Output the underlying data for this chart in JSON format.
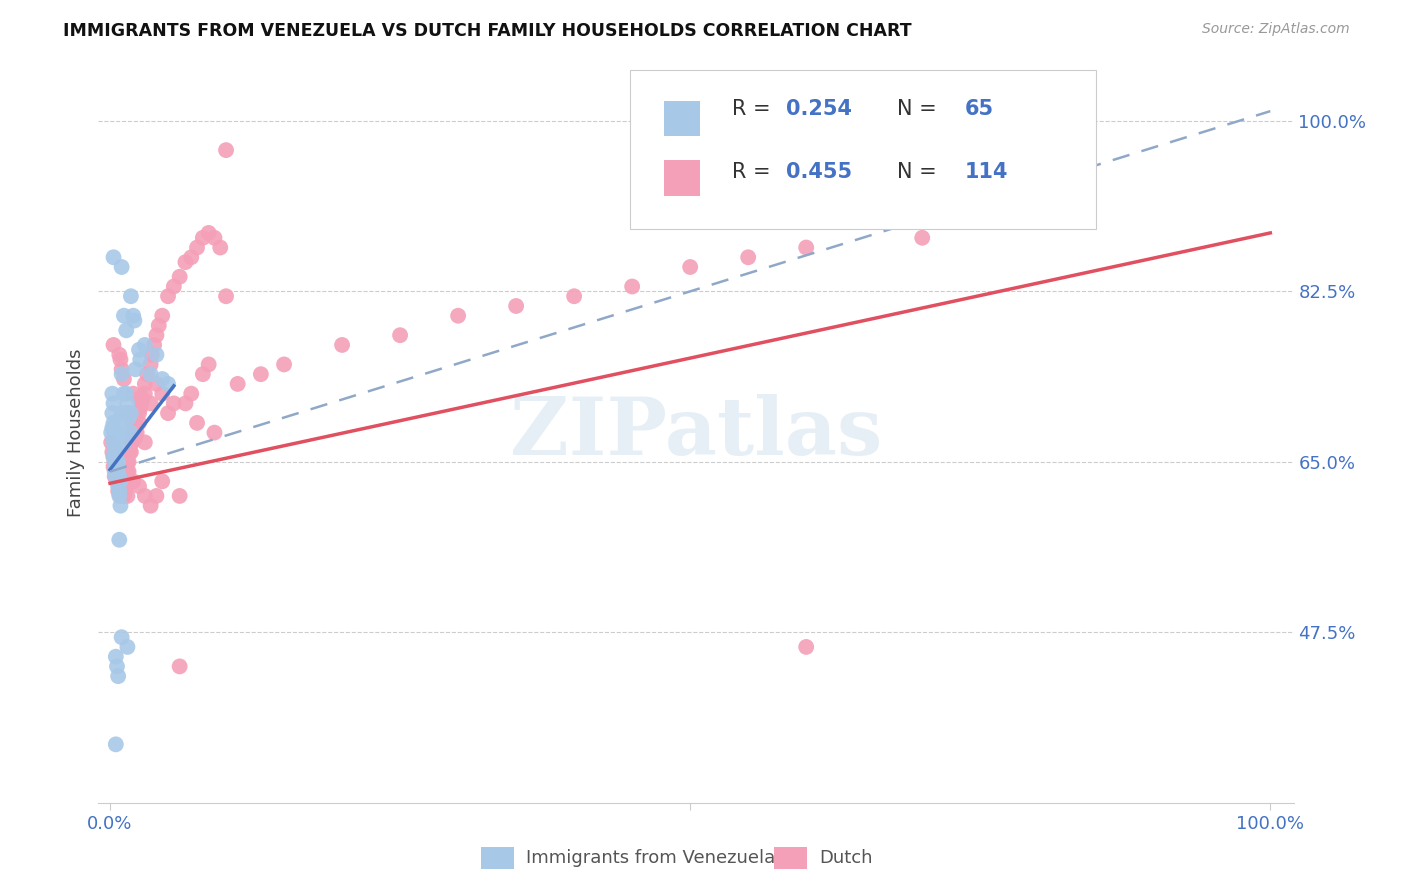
{
  "title": "IMMIGRANTS FROM VENEZUELA VS DUTCH FAMILY HOUSEHOLDS CORRELATION CHART",
  "source": "Source: ZipAtlas.com",
  "ylabel": "Family Households",
  "color_blue": "#a8c8e8",
  "color_pink": "#f4a0b8",
  "color_blue_line": "#4472c4",
  "color_pink_line": "#e05060",
  "color_blue_dash": "#90a8c8",
  "color_axis_text": "#4472c4",
  "ytick_labels": [
    "100.0%",
    "82.5%",
    "65.0%",
    "47.5%"
  ],
  "ytick_positions": [
    1.0,
    0.825,
    0.65,
    0.475
  ],
  "watermark": "ZIPatlas",
  "blue_x": [
    0.001,
    0.002,
    0.002,
    0.002,
    0.003,
    0.003,
    0.003,
    0.003,
    0.004,
    0.004,
    0.004,
    0.004,
    0.004,
    0.005,
    0.005,
    0.005,
    0.005,
    0.006,
    0.006,
    0.006,
    0.006,
    0.007,
    0.007,
    0.007,
    0.008,
    0.008,
    0.008,
    0.009,
    0.009,
    0.01,
    0.01,
    0.011,
    0.011,
    0.012,
    0.012,
    0.013,
    0.013,
    0.014,
    0.015,
    0.015,
    0.016,
    0.018,
    0.018,
    0.02,
    0.021,
    0.022,
    0.025,
    0.026,
    0.003,
    0.01,
    0.012,
    0.014,
    0.018,
    0.005,
    0.006,
    0.007,
    0.01,
    0.015,
    0.008,
    0.03,
    0.035,
    0.04,
    0.045,
    0.05,
    0.005
  ],
  "blue_y": [
    0.68,
    0.72,
    0.7,
    0.685,
    0.71,
    0.69,
    0.67,
    0.655,
    0.66,
    0.68,
    0.65,
    0.64,
    0.665,
    0.67,
    0.65,
    0.635,
    0.66,
    0.64,
    0.63,
    0.65,
    0.66,
    0.64,
    0.625,
    0.65,
    0.635,
    0.62,
    0.615,
    0.63,
    0.605,
    0.74,
    0.7,
    0.69,
    0.68,
    0.72,
    0.67,
    0.7,
    0.68,
    0.72,
    0.71,
    0.7,
    0.695,
    0.7,
    0.68,
    0.8,
    0.795,
    0.745,
    0.765,
    0.755,
    0.86,
    0.85,
    0.8,
    0.785,
    0.82,
    0.45,
    0.44,
    0.43,
    0.47,
    0.46,
    0.57,
    0.77,
    0.74,
    0.76,
    0.735,
    0.73,
    0.36
  ],
  "pink_x": [
    0.001,
    0.002,
    0.003,
    0.003,
    0.004,
    0.004,
    0.005,
    0.005,
    0.005,
    0.006,
    0.006,
    0.007,
    0.007,
    0.007,
    0.008,
    0.008,
    0.009,
    0.009,
    0.01,
    0.01,
    0.01,
    0.011,
    0.011,
    0.012,
    0.012,
    0.012,
    0.013,
    0.013,
    0.014,
    0.014,
    0.015,
    0.015,
    0.016,
    0.016,
    0.017,
    0.018,
    0.018,
    0.019,
    0.02,
    0.02,
    0.021,
    0.022,
    0.022,
    0.023,
    0.025,
    0.025,
    0.026,
    0.027,
    0.028,
    0.03,
    0.03,
    0.032,
    0.035,
    0.036,
    0.038,
    0.04,
    0.042,
    0.045,
    0.05,
    0.055,
    0.06,
    0.065,
    0.07,
    0.075,
    0.08,
    0.085,
    0.09,
    0.095,
    0.003,
    0.008,
    0.009,
    0.01,
    0.012,
    0.015,
    0.02,
    0.025,
    0.03,
    0.035,
    0.04,
    0.045,
    0.05,
    0.055,
    0.06,
    0.065,
    0.07,
    0.075,
    0.08,
    0.085,
    0.1,
    0.1,
    0.11,
    0.13,
    0.15,
    0.2,
    0.25,
    0.3,
    0.35,
    0.4,
    0.45,
    0.5,
    0.55,
    0.6,
    0.7,
    0.06,
    0.09,
    0.6,
    0.01,
    0.015,
    0.02,
    0.025,
    0.03,
    0.035,
    0.04,
    0.045
  ],
  "pink_y": [
    0.67,
    0.66,
    0.655,
    0.645,
    0.65,
    0.635,
    0.66,
    0.645,
    0.635,
    0.63,
    0.64,
    0.63,
    0.62,
    0.645,
    0.625,
    0.63,
    0.62,
    0.615,
    0.64,
    0.635,
    0.625,
    0.63,
    0.625,
    0.63,
    0.62,
    0.615,
    0.63,
    0.62,
    0.64,
    0.63,
    0.65,
    0.64,
    0.65,
    0.64,
    0.66,
    0.67,
    0.66,
    0.67,
    0.69,
    0.68,
    0.68,
    0.69,
    0.675,
    0.68,
    0.7,
    0.69,
    0.705,
    0.71,
    0.715,
    0.73,
    0.72,
    0.74,
    0.75,
    0.76,
    0.77,
    0.78,
    0.79,
    0.8,
    0.82,
    0.83,
    0.84,
    0.855,
    0.86,
    0.87,
    0.88,
    0.885,
    0.88,
    0.87,
    0.77,
    0.76,
    0.755,
    0.745,
    0.735,
    0.7,
    0.72,
    0.715,
    0.67,
    0.71,
    0.73,
    0.72,
    0.7,
    0.71,
    0.44,
    0.71,
    0.72,
    0.69,
    0.74,
    0.75,
    0.97,
    0.82,
    0.73,
    0.74,
    0.75,
    0.77,
    0.78,
    0.8,
    0.81,
    0.82,
    0.83,
    0.85,
    0.86,
    0.87,
    0.88,
    0.615,
    0.68,
    0.46,
    0.62,
    0.615,
    0.63,
    0.625,
    0.615,
    0.605,
    0.615,
    0.63
  ]
}
